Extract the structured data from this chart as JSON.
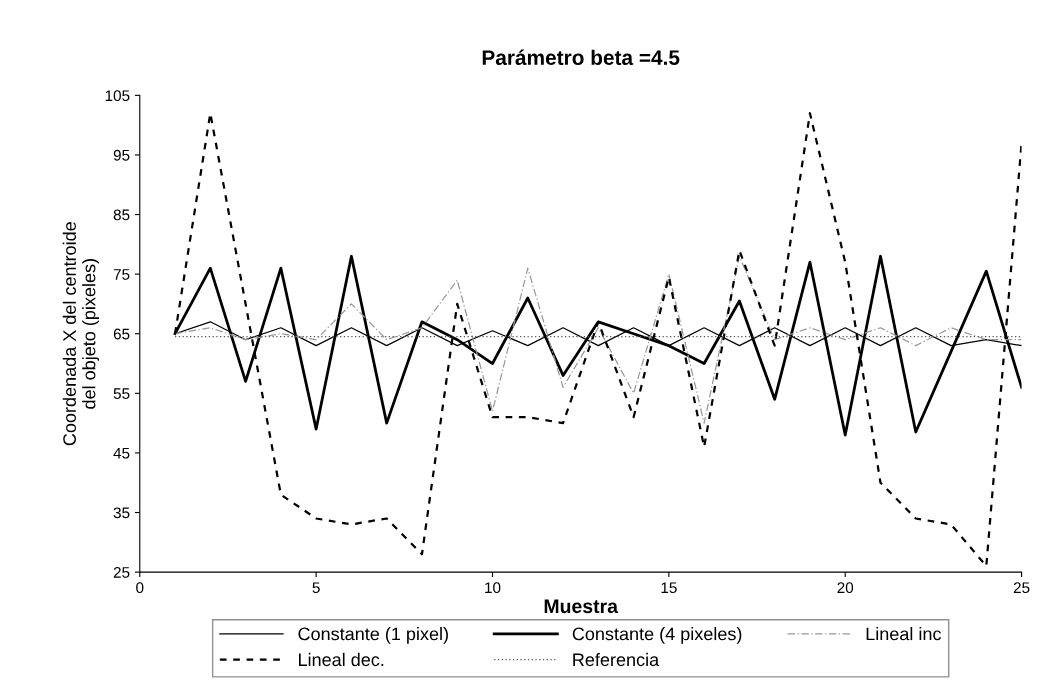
{
  "chart_data": {
    "type": "line",
    "title": "Parámetro beta =4.5",
    "xlabel": "Muestra",
    "ylabel": "Coordenada X del centroide\ndel objeto (pixeles)",
    "x": [
      1,
      2,
      3,
      4,
      5,
      6,
      7,
      8,
      9,
      10,
      11,
      12,
      13,
      14,
      15,
      16,
      17,
      18,
      19,
      20,
      21,
      22,
      23,
      24,
      25
    ],
    "xlim": [
      0,
      25
    ],
    "xticks": [
      0,
      5,
      10,
      15,
      20,
      25
    ],
    "ylim": [
      25,
      105
    ],
    "yticks": [
      25,
      35,
      45,
      55,
      65,
      75,
      85,
      95,
      105
    ],
    "grid": false,
    "legend": "bottom",
    "marker": "none",
    "series": [
      {
        "name": "Constante (1 pixel)",
        "color": "#000000",
        "line_style": "solid",
        "values": [
          65,
          67,
          64,
          66,
          63,
          66,
          63,
          66,
          63,
          65.5,
          63,
          66,
          63,
          66,
          63,
          66,
          63,
          66,
          63,
          66,
          63,
          66,
          63,
          64,
          63
        ]
      },
      {
        "name": "Constante (4 pixeles)",
        "color": "#000000",
        "line_style": "solid",
        "values": [
          65,
          76,
          57,
          76,
          49,
          78,
          50,
          67,
          64,
          60,
          71,
          58,
          67,
          65,
          63,
          60,
          70.5,
          54,
          77,
          48,
          78,
          48.5,
          62,
          75.5,
          56
        ]
      },
      {
        "name": "Lineal inc",
        "color": "#999999",
        "line_style": "dashdot",
        "values": [
          65,
          66,
          64,
          65,
          64,
          70,
          64,
          66,
          74,
          52,
          76,
          56,
          66,
          55,
          75,
          50,
          78,
          64,
          66,
          64,
          66,
          63,
          66,
          64,
          64
        ]
      },
      {
        "name": "Lineal dec.",
        "color": "#000000",
        "line_style": "dashed",
        "values": [
          65,
          102,
          70,
          38,
          34,
          33,
          34,
          28,
          70,
          51,
          51,
          50,
          67,
          51,
          74.5,
          46,
          79,
          63,
          102,
          77,
          40,
          34,
          33,
          26,
          97
        ]
      },
      {
        "name": "Referencia",
        "color": "#555555",
        "line_style": "dotted",
        "values": [
          64.5,
          64.5,
          64.5,
          64.5,
          64.5,
          64.5,
          64.5,
          64.5,
          64.5,
          64.5,
          64.5,
          64.5,
          64.5,
          64.5,
          64.5,
          64.5,
          64.5,
          64.5,
          64.5,
          64.5,
          64.5,
          64.5,
          64.5,
          64.5,
          64.5
        ]
      }
    ]
  }
}
